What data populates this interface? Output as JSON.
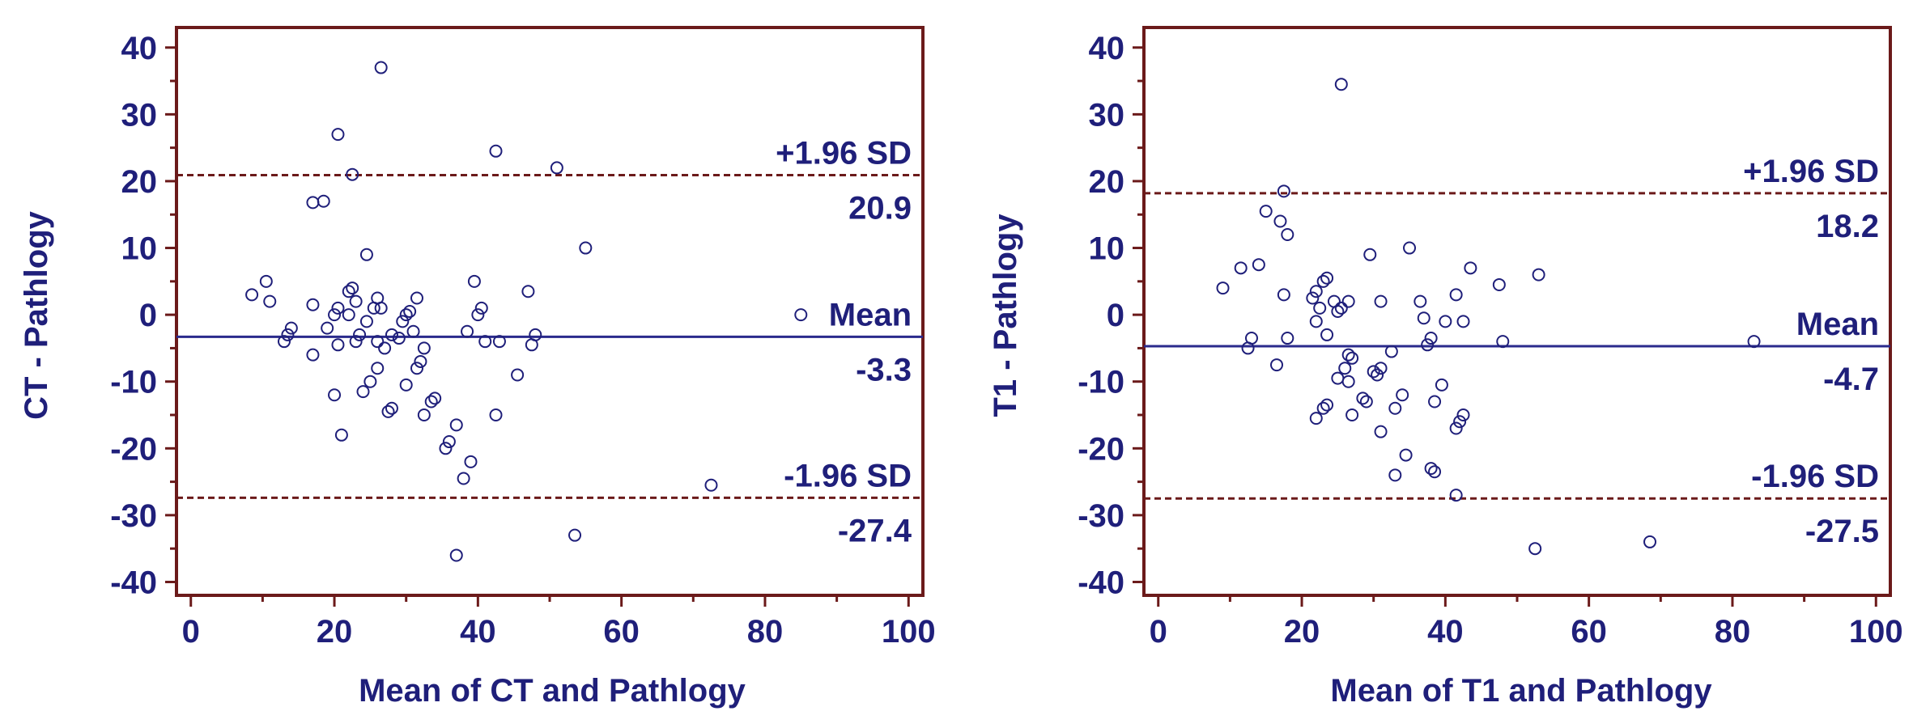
{
  "colors": {
    "frame": "#6b1a1a",
    "mean_line": "#2a2a8c",
    "limit_line": "#6b1a1a",
    "text": "#1f1f7a",
    "points": "#1f1f7a"
  },
  "chart_data": [
    {
      "type": "scatter",
      "subtype": "bland-altman",
      "xlabel": "Mean of CT and Pathlogy",
      "ylabel": "CT - Pathlogy",
      "xlim": [
        -2,
        102
      ],
      "ylim": [
        -42,
        43
      ],
      "xticks": [
        0,
        20,
        40,
        60,
        80,
        100
      ],
      "yticks": [
        40,
        30,
        20,
        10,
        0,
        -10,
        -20,
        -30,
        -40
      ],
      "mean": {
        "label": "Mean",
        "value": -3.3,
        "value_text": "-3.3"
      },
      "upper_limit": {
        "label": "+1.96 SD",
        "value": 20.9,
        "value_text": "20.9"
      },
      "lower_limit": {
        "label": "-1.96 SD",
        "value": -27.4,
        "value_text": "-27.4"
      },
      "points": [
        [
          26.5,
          37
        ],
        [
          20.5,
          27
        ],
        [
          22.5,
          21
        ],
        [
          42.5,
          24.5
        ],
        [
          51,
          22
        ],
        [
          17,
          16.8
        ],
        [
          18.5,
          17
        ],
        [
          55,
          10
        ],
        [
          24.5,
          9
        ],
        [
          10.5,
          5
        ],
        [
          8.5,
          3
        ],
        [
          11,
          2
        ],
        [
          17,
          1.5
        ],
        [
          20,
          0
        ],
        [
          20.5,
          1
        ],
        [
          22,
          3.5
        ],
        [
          22.5,
          4
        ],
        [
          23,
          2
        ],
        [
          25.5,
          1
        ],
        [
          26,
          2.5
        ],
        [
          26.5,
          1
        ],
        [
          30,
          0
        ],
        [
          30.5,
          0.5
        ],
        [
          31.5,
          2.5
        ],
        [
          39.5,
          5
        ],
        [
          40,
          0
        ],
        [
          40.5,
          1
        ],
        [
          47,
          3.5
        ],
        [
          85,
          0
        ],
        [
          14,
          -2
        ],
        [
          13,
          -4
        ],
        [
          13.5,
          -3
        ],
        [
          17,
          -6
        ],
        [
          19,
          -2
        ],
        [
          20.5,
          -4.5
        ],
        [
          22,
          0
        ],
        [
          23,
          -4
        ],
        [
          23.5,
          -3
        ],
        [
          24.5,
          -1
        ],
        [
          26,
          -4
        ],
        [
          26,
          -8
        ],
        [
          27,
          -5
        ],
        [
          28,
          -3
        ],
        [
          29,
          -3.5
        ],
        [
          29.5,
          -1
        ],
        [
          30,
          -10.5
        ],
        [
          31,
          -2.5
        ],
        [
          31.5,
          -8
        ],
        [
          32,
          -7
        ],
        [
          32.5,
          -5
        ],
        [
          38.5,
          -2.5
        ],
        [
          41,
          -4
        ],
        [
          43,
          -4
        ],
        [
          48,
          -3
        ],
        [
          47.5,
          -4.5
        ],
        [
          45.5,
          -9
        ],
        [
          20,
          -12
        ],
        [
          24,
          -11.5
        ],
        [
          25,
          -10
        ],
        [
          21,
          -18
        ],
        [
          27.5,
          -14.5
        ],
        [
          28,
          -14
        ],
        [
          32.5,
          -15
        ],
        [
          34,
          -12.5
        ],
        [
          33.5,
          -13
        ],
        [
          37,
          -16.5
        ],
        [
          42.5,
          -15
        ],
        [
          35.5,
          -20
        ],
        [
          36,
          -19
        ],
        [
          38,
          -24.5
        ],
        [
          39,
          -22
        ],
        [
          37,
          -36
        ],
        [
          53.5,
          -33
        ],
        [
          72.5,
          -25.5
        ]
      ]
    },
    {
      "type": "scatter",
      "subtype": "bland-altman",
      "xlabel": "Mean of T1 and Pathlogy",
      "ylabel": "T1 - Pathlogy",
      "xlim": [
        -2,
        102
      ],
      "ylim": [
        -42,
        43
      ],
      "xticks": [
        0,
        20,
        40,
        60,
        80,
        100
      ],
      "yticks": [
        40,
        30,
        20,
        10,
        0,
        -10,
        -20,
        -30,
        -40
      ],
      "mean": {
        "label": "Mean",
        "value": -4.7,
        "value_text": "-4.7"
      },
      "upper_limit": {
        "label": "+1.96 SD",
        "value": 18.2,
        "value_text": "18.2"
      },
      "lower_limit": {
        "label": "-1.96 SD",
        "value": -27.5,
        "value_text": "-27.5"
      },
      "points": [
        [
          25.5,
          34.5
        ],
        [
          17.5,
          18.5
        ],
        [
          15,
          15.5
        ],
        [
          17,
          14
        ],
        [
          18,
          12
        ],
        [
          35,
          10
        ],
        [
          29.5,
          9
        ],
        [
          11.5,
          7
        ],
        [
          14,
          7.5
        ],
        [
          43.5,
          7
        ],
        [
          53,
          6
        ],
        [
          9,
          4
        ],
        [
          21.5,
          2.5
        ],
        [
          22,
          3.5
        ],
        [
          23,
          5
        ],
        [
          23.5,
          5.5
        ],
        [
          17.5,
          3
        ],
        [
          24.5,
          2
        ],
        [
          22.5,
          1
        ],
        [
          26.5,
          2
        ],
        [
          31,
          2
        ],
        [
          36.5,
          2
        ],
        [
          41.5,
          3
        ],
        [
          47.5,
          4.5
        ],
        [
          25,
          0.5
        ],
        [
          25.5,
          1
        ],
        [
          22,
          -1
        ],
        [
          37,
          -0.5
        ],
        [
          40,
          -1
        ],
        [
          42.5,
          -1
        ],
        [
          13,
          -3.5
        ],
        [
          12.5,
          -5
        ],
        [
          18,
          -3.5
        ],
        [
          23.5,
          -3
        ],
        [
          26.5,
          -6
        ],
        [
          27,
          -6.5
        ],
        [
          30,
          -8.5
        ],
        [
          31,
          -8
        ],
        [
          32.5,
          -5.5
        ],
        [
          38,
          -3.5
        ],
        [
          37.5,
          -4.5
        ],
        [
          48,
          -4
        ],
        [
          83,
          -4
        ],
        [
          16.5,
          -7.5
        ],
        [
          25,
          -9.5
        ],
        [
          26,
          -8
        ],
        [
          26.5,
          -10
        ],
        [
          28.5,
          -12.5
        ],
        [
          29,
          -13
        ],
        [
          30.5,
          -9
        ],
        [
          34,
          -12
        ],
        [
          39.5,
          -10.5
        ],
        [
          22,
          -15.5
        ],
        [
          23,
          -14
        ],
        [
          23.5,
          -13.5
        ],
        [
          27,
          -15
        ],
        [
          33,
          -14
        ],
        [
          38.5,
          -13
        ],
        [
          42,
          -16
        ],
        [
          41.5,
          -17
        ],
        [
          42.5,
          -15
        ],
        [
          31,
          -17.5
        ],
        [
          34.5,
          -21
        ],
        [
          33,
          -24
        ],
        [
          38,
          -23
        ],
        [
          38.5,
          -23.5
        ],
        [
          41.5,
          -27
        ],
        [
          52.5,
          -35
        ],
        [
          68.5,
          -34
        ]
      ]
    }
  ]
}
